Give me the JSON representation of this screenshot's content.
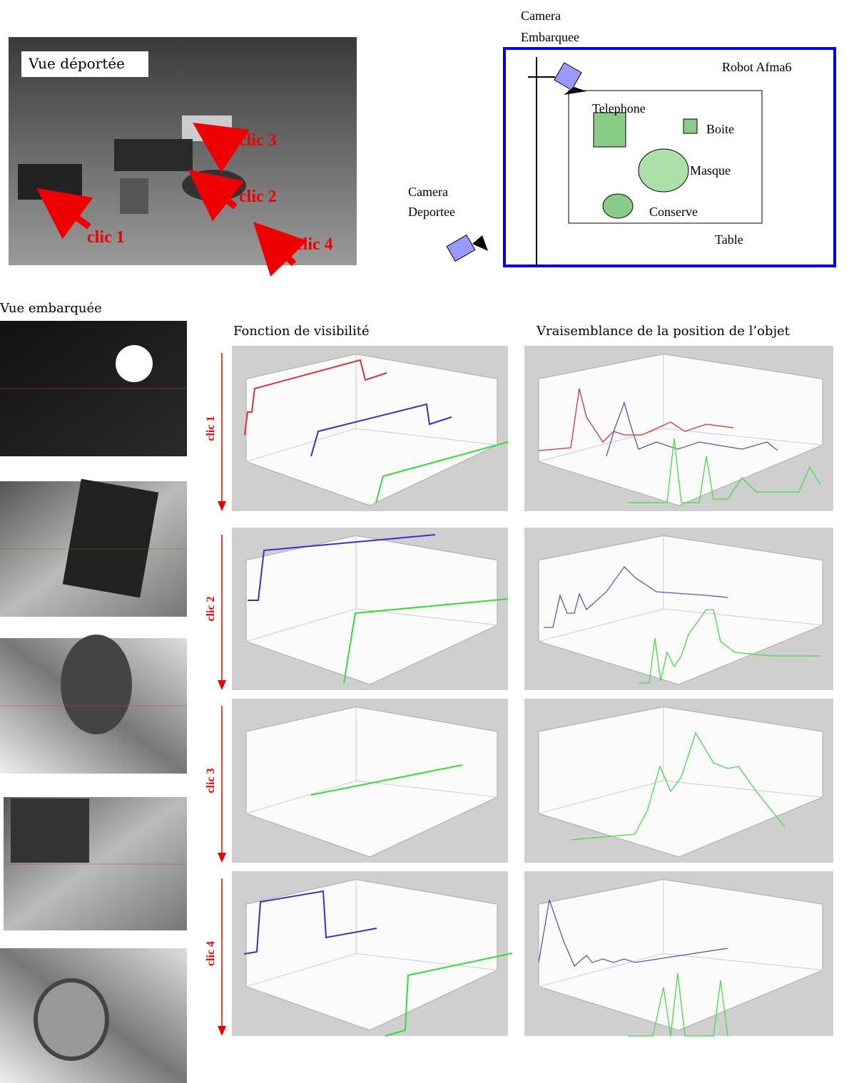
{
  "remote_view": {
    "label": "Vue déportée",
    "clicks": [
      "clic 1",
      "clic 2",
      "clic 3",
      "clic 4"
    ]
  },
  "diagram": {
    "onboard_camera": [
      "Camera",
      "Embarquee"
    ],
    "robot": "Robot Afma6",
    "objects": [
      "Telephone",
      "Boite",
      "Masque",
      "Conserve"
    ],
    "table": "Table",
    "remote_camera": [
      "Camera",
      "Deportee"
    ]
  },
  "onboard_view": {
    "label": "Vue embarquée"
  },
  "plots": {
    "visibility_title": "Fonction de visibilité",
    "likelihood_title": "Vraisemblance de la position de l’objet",
    "rows": [
      "clic 1",
      "clic 2",
      "clic 3",
      "clic 4"
    ]
  }
}
